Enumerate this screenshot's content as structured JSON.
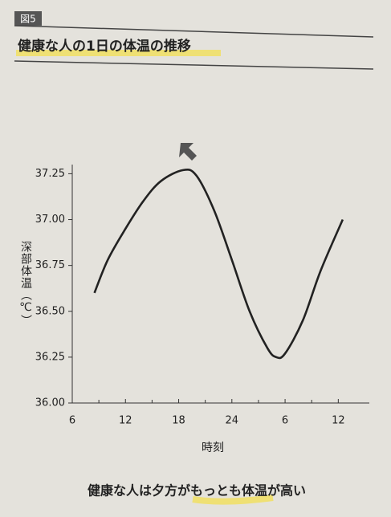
{
  "figure_label": "図5",
  "heading": "健康な人の1日の体温の推移",
  "caption": "健康な人は夕方がもっとも体温が高い",
  "chart_data": {
    "type": "line",
    "ylabel": "深部体温（℃）",
    "xlabel": "時刻",
    "x": [
      8.5,
      10,
      12,
      14,
      16,
      18.5,
      20,
      22,
      24,
      26,
      28,
      29,
      30,
      32,
      34,
      36.5
    ],
    "values": [
      36.6,
      36.78,
      36.95,
      37.1,
      37.21,
      37.27,
      37.24,
      37.05,
      36.78,
      36.5,
      36.3,
      36.25,
      36.27,
      36.45,
      36.72,
      37.0
    ],
    "color": "#222222",
    "xlim": [
      6,
      39.5
    ],
    "xticks": [
      6,
      12,
      18,
      24,
      {
        "value": 30,
        "label": "6"
      },
      {
        "value": 36,
        "label": "12"
      }
    ],
    "ylim": [
      36.0,
      37.3
    ],
    "yticks": [
      {
        "value": 36.0,
        "label": "36.00"
      },
      36.25,
      {
        "value": 36.5,
        "label": "36.50"
      },
      36.75,
      {
        "value": 37.0,
        "label": "37.00"
      },
      37.25
    ],
    "grid": false
  }
}
